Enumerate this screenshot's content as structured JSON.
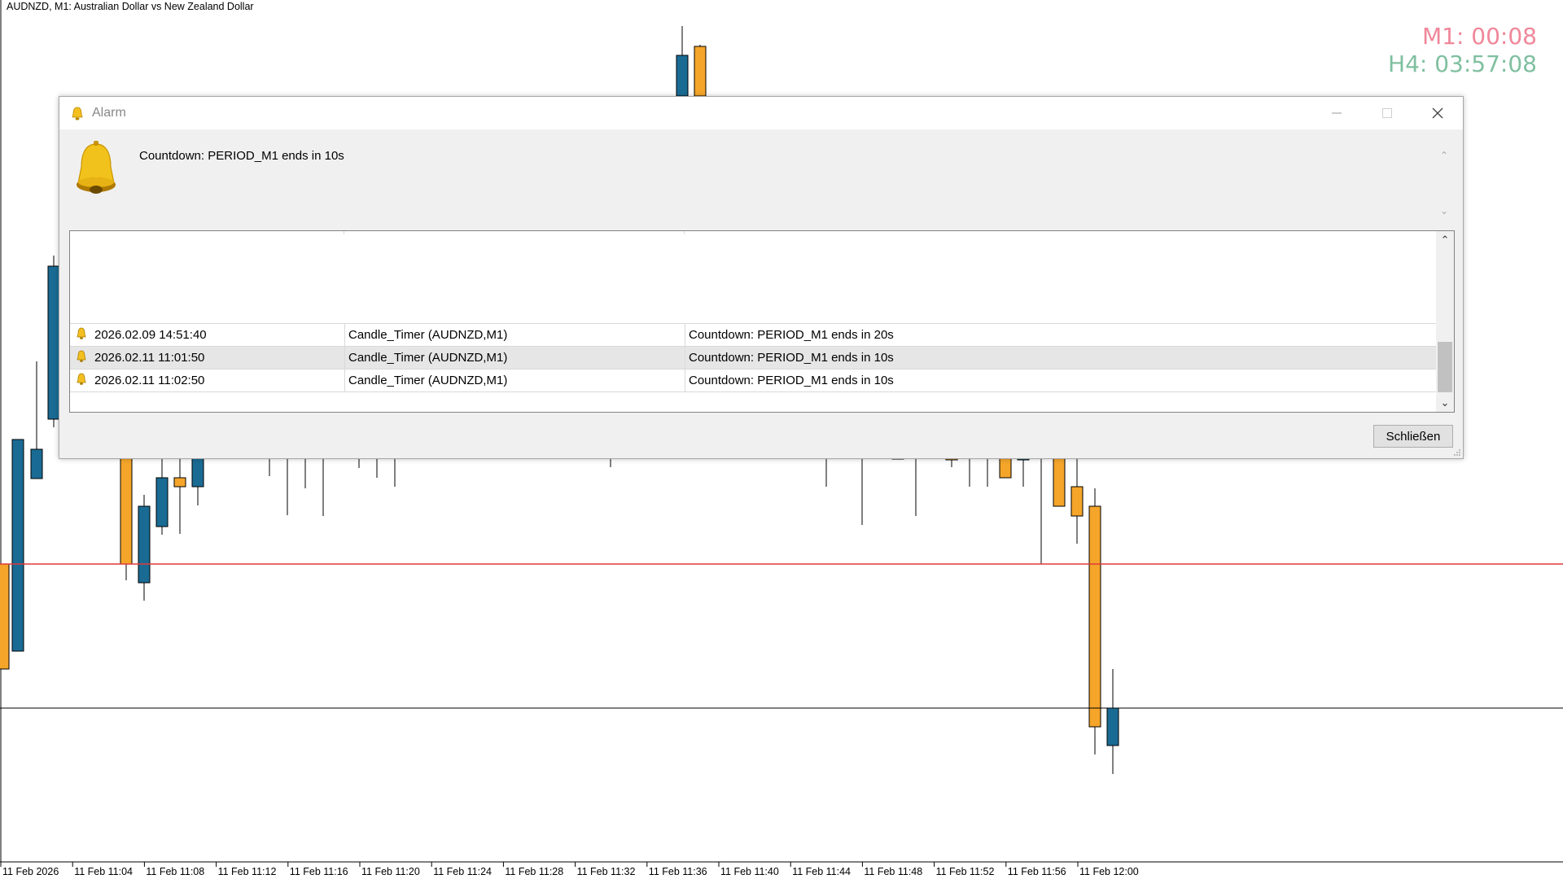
{
  "chart": {
    "title": "AUDNZD, M1:  Australian Dollar vs New Zealand Dollar",
    "timer_m1": "M1: 00:08",
    "timer_h4": "H4: 03:57:08",
    "colors": {
      "bull": "#1a6b94",
      "bear": "#f5a52a",
      "red_line": "#e03a3a",
      "black_line": "#000000",
      "timer_m1": "#f0879a",
      "timer_h4": "#80c0a0"
    },
    "x_labels": [
      "11 Feb 2026",
      "11 Feb 11:04",
      "11 Feb 11:08",
      "11 Feb 11:12",
      "11 Feb 11:16",
      "11 Feb 11:20",
      "11 Feb 11:24",
      "11 Feb 11:28",
      "11 Feb 11:32",
      "11 Feb 11:36",
      "11 Feb 11:40",
      "11 Feb 11:44",
      "11 Feb 11:48",
      "11 Feb 11:52",
      "11 Feb 11:56",
      "11 Feb 12:00"
    ]
  },
  "alarm": {
    "title": "Alarm",
    "message": "Countdown: PERIOD_M1 ends in 10s",
    "close_label": "Schließen",
    "history": [
      {
        "time": "2026.02.09 14:51:40",
        "expert": "Candle_Timer (AUDNZD,M1)",
        "message": "Countdown: PERIOD_M1 ends in 20s"
      },
      {
        "time": "2026.02.11 11:01:50",
        "expert": "Candle_Timer (AUDNZD,M1)",
        "message": "Countdown: PERIOD_M1 ends in 10s"
      },
      {
        "time": "2026.02.11 11:02:50",
        "expert": "Candle_Timer (AUDNZD,M1)",
        "message": "Countdown: PERIOD_M1 ends in 10s"
      }
    ],
    "selected_row": 1,
    "icons": {
      "title": "bell-icon",
      "message": "bell-icon",
      "row": "bell-icon",
      "close": "close-icon",
      "minimize": "minimize-icon",
      "maximize": "maximize-icon"
    }
  }
}
